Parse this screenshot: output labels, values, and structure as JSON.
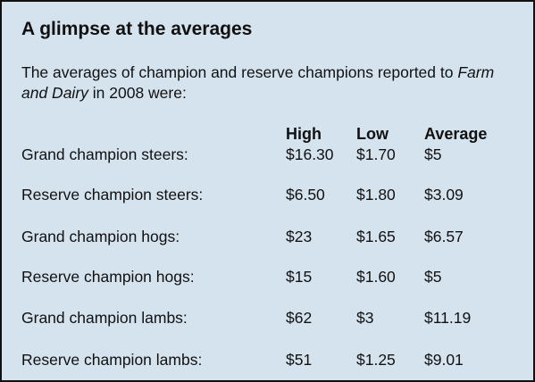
{
  "box": {
    "title": "A glimpse at the averages",
    "intro": {
      "before": "The averages of champion and reserve champions reported to ",
      "publication": "Farm and Dairy",
      "after": " in 2008 were:"
    },
    "table": {
      "headers": {
        "high": "High",
        "low": "Low",
        "average": "Average"
      },
      "rows": [
        {
          "label": "Grand champion steers:",
          "high": "$16.30",
          "low": "$1.70",
          "average": "$5"
        },
        {
          "label": "Reserve champion steers:",
          "high": "$6.50",
          "low": "$1.80",
          "average": "$3.09"
        },
        {
          "label": "Grand champion hogs:",
          "high": "$23",
          "low": "$1.65",
          "average": "$6.57"
        },
        {
          "label": "Reserve champion hogs:",
          "high": "$15",
          "low": "$1.60",
          "average": "$5"
        },
        {
          "label": "Grand champion lambs:",
          "high": "$62",
          "low": "$3",
          "average": "$11.19"
        },
        {
          "label": "Reserve champion lambs:",
          "high": "$51",
          "low": "$1.25",
          "average": "$9.01"
        }
      ]
    }
  }
}
